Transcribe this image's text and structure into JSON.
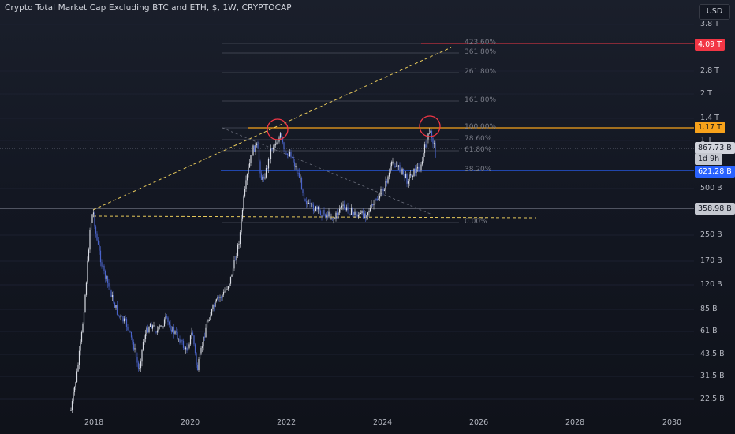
{
  "header": {
    "title": "Crypto Total Market Cap Excluding BTC and ETH, $, 1W, CRYPTOCAP",
    "currency": "USD"
  },
  "price_axis": {
    "ticks": [
      "3.8 T",
      "2.8 T",
      "2 T",
      "1.4 T",
      "1 T",
      "500 B",
      "250 B",
      "170 B",
      "120 B",
      "85 B",
      "61 B",
      "43.5 B",
      "31.5 B",
      "22.5 B"
    ]
  },
  "time_axis": {
    "ticks": [
      "2018",
      "2020",
      "2022",
      "2024",
      "2026",
      "2028",
      "2030"
    ]
  },
  "badges": {
    "target": "4.09 T",
    "ath": "1.17 T",
    "price": "867.73 B",
    "countdown": "1d 9h",
    "support": "621.28 B",
    "prev_ath": "358.98 B"
  },
  "fib_levels": [
    "423.60%",
    "361.80%",
    "261.80%",
    "161.80%",
    "100.00%",
    "78.60%",
    "61.80%",
    "38.20%",
    "0.00%"
  ],
  "colors": {
    "candle_up": "#d8dbe3",
    "candle_down": "#4a63c9",
    "target_line": "#f23645",
    "ath_line": "#f7a21b",
    "support_line": "#2962ff",
    "projection": "#e6c85a",
    "circle": "#f23645"
  }
}
